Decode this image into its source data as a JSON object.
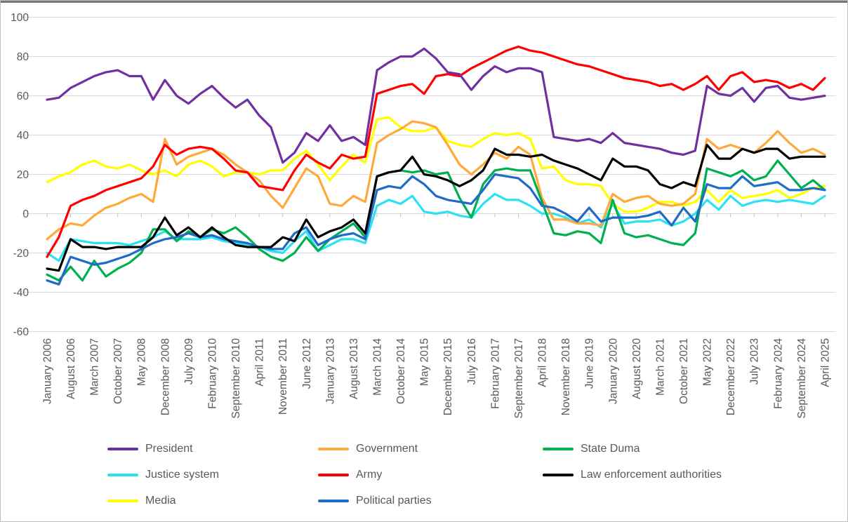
{
  "axis_colors": {
    "label": "#595959",
    "gridline": "#d9d9d9",
    "tick": "#bfbfbf"
  },
  "legend": [
    {
      "label": "President",
      "color": "#7030a0"
    },
    {
      "label": "Government",
      "color": "#ffa93a"
    },
    {
      "label": "State Duma",
      "color": "#00b050"
    },
    {
      "label": "Justice system",
      "color": "#2be2f0"
    },
    {
      "label": "Army",
      "color": "#ff0000"
    },
    {
      "label": "Law enforcement authorities",
      "color": "#000000"
    },
    {
      "label": "Media",
      "color": "#ffff00"
    },
    {
      "label": "Political parties",
      "color": "#1e6bc8"
    }
  ],
  "chart_data": {
    "type": "line",
    "title": "",
    "xlabel": "",
    "ylabel": "",
    "ylim": [
      -60,
      100
    ],
    "y_tick_step": 20,
    "y_tick_labels": [
      "100",
      "80",
      "60",
      "40",
      "20",
      "0",
      "-20",
      "-40",
      "-60"
    ],
    "grid": "horizontal",
    "legend_position": "bottom",
    "x_tick_labels": [
      "January 2006",
      "August 2006",
      "March 2007",
      "October 2007",
      "May 2008",
      "December 2008",
      "July 2009",
      "February 2010",
      "September 2010",
      "April 2011",
      "November 2011",
      "June 2012",
      "January 2013",
      "August 2013",
      "March 2014",
      "October 2014",
      "May 2015",
      "December 2015",
      "July 2016",
      "February 2017",
      "September 2017",
      "April 2018",
      "November 2018",
      "June 2019",
      "January 2020",
      "August 2020",
      "March 2021",
      "October 2021",
      "May 2022",
      "December 2022",
      "July 2023",
      "February 2024",
      "September 2024",
      "April 2025"
    ],
    "points_per_series": 67,
    "sampling_note": "values sampled at each labeled tick and at the midpoint between ticks (ticks are every 7 months, Jan 2006 - Apr 2025)",
    "z_order": [
      "Justice system",
      "Media",
      "Government",
      "State Duma",
      "Political parties",
      "Law enforcement authorities",
      "Army",
      "President"
    ],
    "series": [
      {
        "name": "President",
        "color": "#7030a0",
        "values": [
          58,
          59,
          64,
          67,
          70,
          72,
          73,
          70,
          70,
          58,
          68,
          60,
          56,
          61,
          65,
          59,
          54,
          58,
          50,
          44,
          26,
          31,
          41,
          37,
          45,
          37,
          39,
          35,
          73,
          77,
          80,
          80,
          84,
          79,
          72,
          71,
          63,
          70,
          75,
          72,
          74,
          74,
          72,
          39,
          38,
          37,
          38,
          36,
          41,
          36,
          35,
          34,
          33,
          31,
          30,
          32,
          65,
          61,
          60,
          64,
          57,
          64,
          65,
          59,
          58,
          59,
          60
        ]
      },
      {
        "name": "Government",
        "color": "#ffa93a",
        "values": [
          -13,
          -8,
          -5,
          -6,
          -1,
          3,
          5,
          8,
          10,
          6,
          38,
          25,
          29,
          31,
          33,
          30,
          25,
          21,
          17,
          9,
          3,
          13,
          23,
          19,
          5,
          4,
          9,
          6,
          36,
          40,
          43,
          47,
          46,
          44,
          35,
          25,
          20,
          25,
          31,
          28,
          34,
          30,
          8,
          -3,
          -3,
          -5,
          -5,
          -6,
          10,
          6,
          8,
          9,
          5,
          4,
          5,
          10,
          38,
          33,
          35,
          33,
          31,
          36,
          42,
          36,
          31,
          33,
          30
        ]
      },
      {
        "name": "State Duma",
        "color": "#00b050",
        "values": [
          -31,
          -34,
          -27,
          -34,
          -24,
          -32,
          -28,
          -25,
          -20,
          -8,
          -8,
          -14,
          -9,
          -12,
          -8,
          -10,
          -7,
          -12,
          -18,
          -22,
          -24,
          -20,
          -12,
          -19,
          -13,
          -9,
          -5,
          -12,
          19,
          21,
          22,
          21,
          22,
          20,
          21,
          8,
          -2,
          15,
          22,
          23,
          22,
          22,
          6,
          -10,
          -11,
          -9,
          -10,
          -15,
          7,
          -10,
          -12,
          -11,
          -13,
          -15,
          -16,
          -10,
          23,
          21,
          19,
          22,
          17,
          19,
          27,
          20,
          13,
          17,
          12
        ]
      },
      {
        "name": "Justice system",
        "color": "#2be2f0",
        "values": [
          -20,
          -24,
          -13,
          -14,
          -15,
          -15,
          -15,
          -16,
          -14,
          -12,
          -9,
          -13,
          -13,
          -13,
          -12,
          -14,
          -15,
          -16,
          -17,
          -19,
          -20,
          -14,
          -9,
          -19,
          -16,
          -13,
          -13,
          -15,
          4,
          7,
          5,
          9,
          1,
          0,
          1,
          -1,
          -2,
          5,
          10,
          7,
          7,
          4,
          0,
          0,
          -2,
          -5,
          -3,
          -7,
          5,
          -5,
          -4,
          -4,
          -3,
          -6,
          -4,
          0,
          7,
          2,
          9,
          4,
          6,
          7,
          6,
          7,
          6,
          5,
          9
        ]
      },
      {
        "name": "Army",
        "color": "#ff0000",
        "values": [
          -22,
          -12,
          4,
          7,
          9,
          12,
          14,
          16,
          18,
          24,
          35,
          30,
          33,
          34,
          33,
          28,
          22,
          21,
          14,
          13,
          12,
          22,
          30,
          26,
          23,
          30,
          28,
          29,
          61,
          63,
          65,
          66,
          61,
          70,
          71,
          70,
          74,
          77,
          80,
          83,
          85,
          83,
          82,
          80,
          78,
          76,
          75,
          73,
          71,
          69,
          68,
          67,
          65,
          66,
          63,
          66,
          70,
          63,
          70,
          72,
          67,
          68,
          67,
          64,
          66,
          63,
          69
        ]
      },
      {
        "name": "Law enforcement authorities",
        "color": "#000000",
        "values": [
          -28,
          -29,
          -13,
          -17,
          -17,
          -18,
          -17,
          -17,
          -17,
          -12,
          -2,
          -11,
          -7,
          -12,
          -7,
          -12,
          -16,
          -17,
          -17,
          -17,
          -12,
          -14,
          -3,
          -12,
          -9,
          -7,
          -3,
          -10,
          19,
          21,
          22,
          29,
          20,
          19,
          17,
          14,
          17,
          22,
          33,
          30,
          30,
          29,
          30,
          27,
          25,
          23,
          20,
          17,
          28,
          24,
          24,
          22,
          15,
          13,
          16,
          14,
          35,
          28,
          28,
          33,
          31,
          33,
          33,
          28,
          29,
          29,
          29
        ]
      },
      {
        "name": "Media",
        "color": "#ffff00",
        "values": [
          16,
          19,
          21,
          25,
          27,
          24,
          23,
          25,
          22,
          20,
          22,
          19,
          25,
          27,
          24,
          19,
          21,
          21,
          20,
          22,
          22,
          28,
          32,
          25,
          17,
          24,
          30,
          26,
          48,
          49,
          44,
          42,
          42,
          44,
          37,
          35,
          34,
          38,
          41,
          40,
          41,
          38,
          23,
          24,
          17,
          15,
          15,
          14,
          5,
          1,
          1,
          3,
          6,
          6,
          4,
          6,
          12,
          6,
          12,
          8,
          9,
          10,
          12,
          8,
          10,
          13,
          14
        ]
      },
      {
        "name": "Political parties",
        "color": "#1e6bc8",
        "values": [
          -34,
          -36,
          -22,
          -24,
          -26,
          -25,
          -23,
          -21,
          -18,
          -15,
          -13,
          -12,
          -10,
          -12,
          -11,
          -13,
          -14,
          -15,
          -17,
          -18,
          -18,
          -10,
          -7,
          -16,
          -13,
          -11,
          -10,
          -13,
          12,
          14,
          13,
          19,
          15,
          9,
          7,
          6,
          5,
          12,
          20,
          19,
          18,
          13,
          4,
          3,
          0,
          -4,
          3,
          -4,
          -2,
          -2,
          -2,
          -1,
          1,
          -6,
          3,
          -4,
          15,
          13,
          13,
          19,
          14,
          15,
          16,
          12,
          12,
          13,
          12
        ]
      }
    ]
  }
}
